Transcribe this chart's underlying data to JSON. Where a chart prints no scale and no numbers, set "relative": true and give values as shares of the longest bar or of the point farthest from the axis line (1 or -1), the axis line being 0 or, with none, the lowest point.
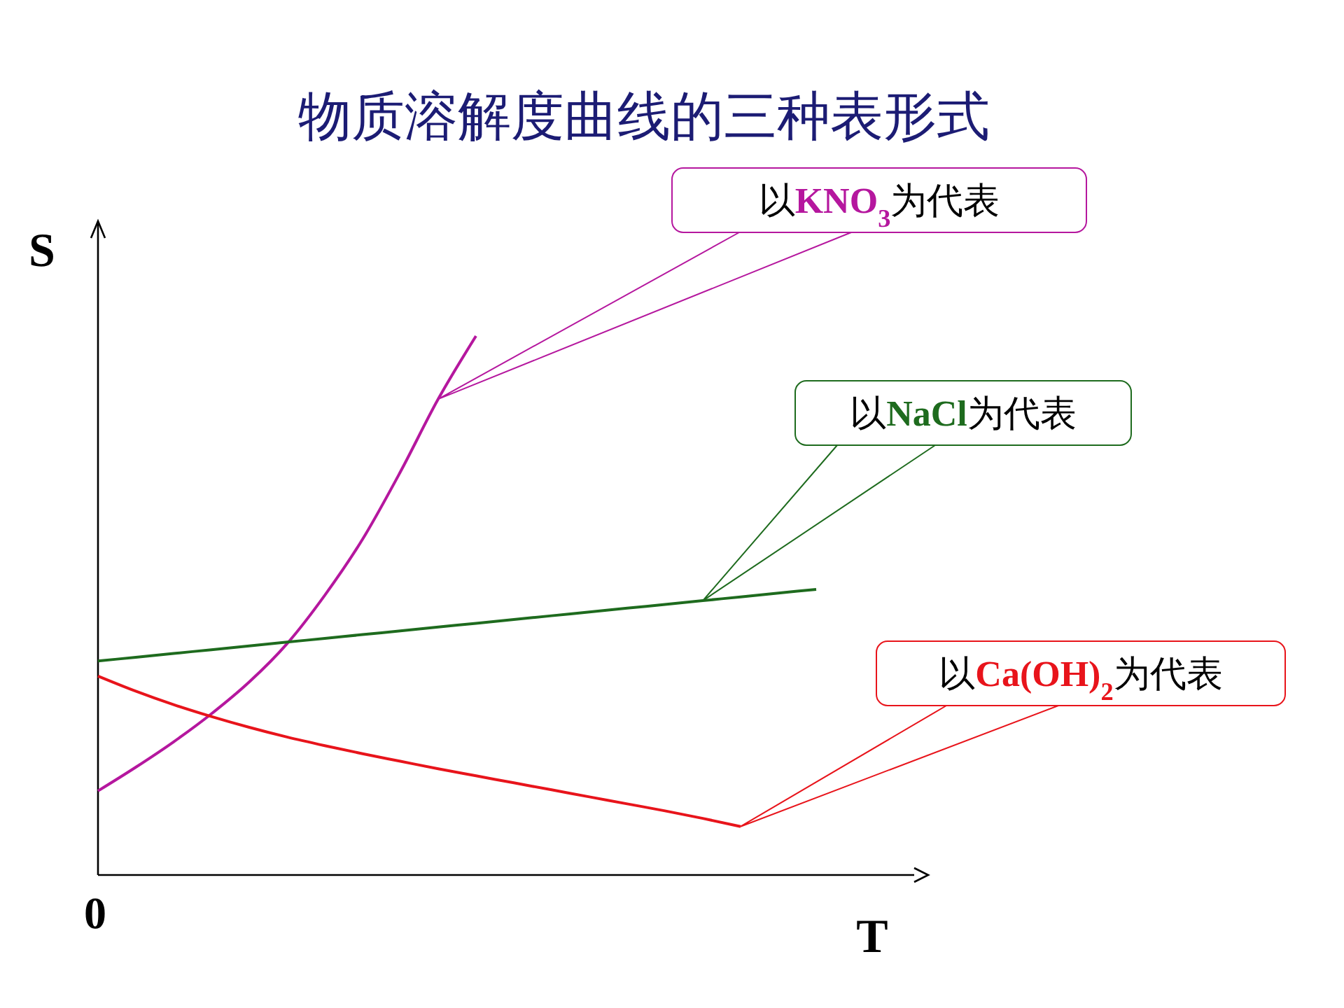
{
  "chart_data": {
    "type": "line",
    "title": "物质溶解度曲线的三种表形式",
    "xlabel": "T",
    "ylabel": "S",
    "relative": true,
    "categories": [
      null,
      null,
      null,
      null,
      null,
      null,
      null,
      null,
      null,
      null,
      null,
      null,
      null,
      null,
      null,
      null,
      null,
      null,
      null,
      null
    ],
    "annotations": [
      "0"
    ],
    "series": [
      {
        "name": "以KNO$_{3}$为代表",
        "color": "#b5179e",
        "values": [
          0.156,
          0.2,
          0.247,
          0.299,
          0.358,
          0.429,
          0.519,
          0.623,
          0.748,
          0.883,
          1,
          null,
          null,
          null,
          null,
          null,
          null,
          null,
          null,
          null
        ]
      },
      {
        "name": "以NaCl为代表",
        "color": "#1e6b1e",
        "values": [
          0.397,
          0.404,
          0.411,
          0.418,
          0.425,
          0.432,
          0.439,
          0.446,
          0.453,
          0.46,
          0.467,
          0.474,
          0.481,
          0.488,
          0.495,
          0.502,
          0.509,
          0.516,
          0.523,
          0.53
        ]
      },
      {
        "name": "以Ca(OH)$_{2}$为代表",
        "color": "#e8141b",
        "values": [
          0.369,
          0.341,
          0.316,
          0.294,
          0.274,
          0.256,
          0.24,
          0.225,
          0.211,
          0.197,
          0.184,
          0.171,
          0.158,
          0.145,
          0.132,
          0.119,
          0.105,
          0.09,
          null,
          null
        ]
      }
    ]
  }
}
